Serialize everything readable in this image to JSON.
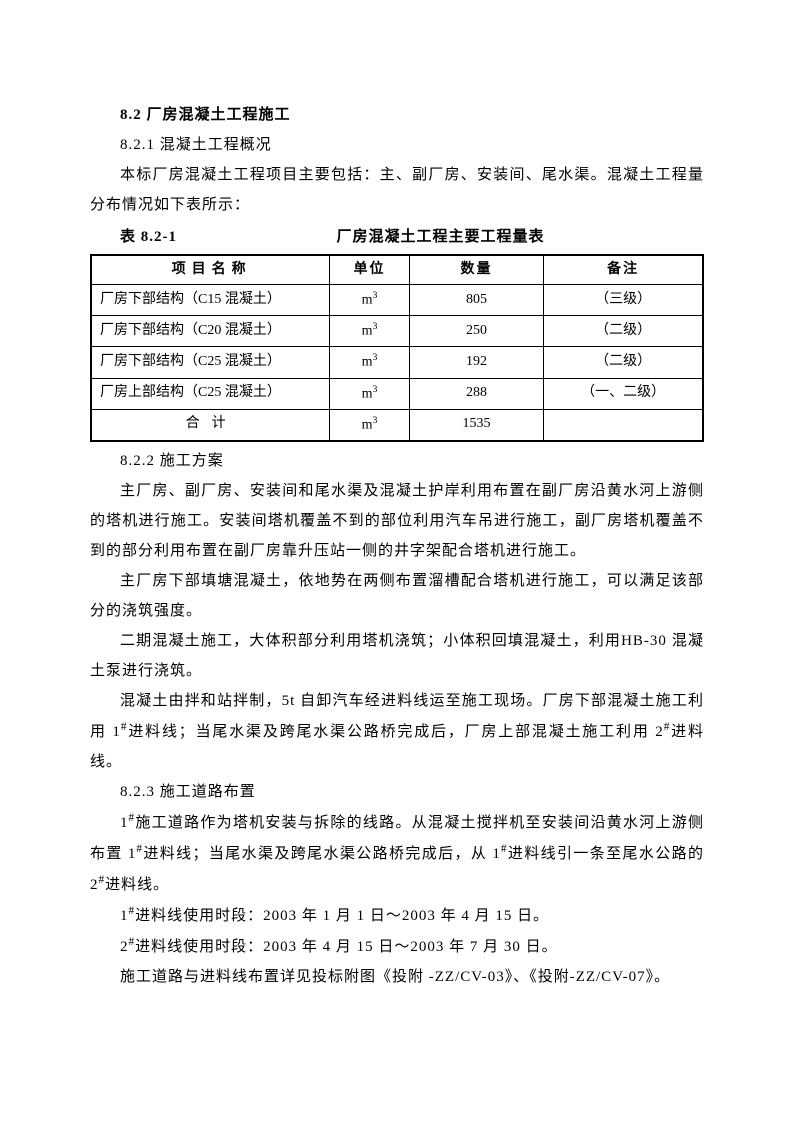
{
  "section": {
    "h1": "8.2 厂房混凝土工程施工",
    "h2_1": "8.2.1 混凝土工程概况",
    "p1": "本标厂房混凝土工程项目主要包括：主、副厂房、安装间、尾水渠。混凝土工程量分布情况如下表所示：",
    "table_caption_left": "表 8.2-1",
    "table_caption_center": "厂房混凝土工程主要工程量表",
    "h2_2": "8.2.2 施工方案",
    "p2": "主厂房、副厂房、安装间和尾水渠及混凝土护岸利用布置在副厂房沿黄水河上游侧的塔机进行施工。安装间塔机覆盖不到的部位利用汽车吊进行施工，副厂房塔机覆盖不到的部分利用布置在副厂房靠升压站一侧的井字架配合塔机进行施工。",
    "p3": "主厂房下部填塘混凝土，依地势在两侧布置溜槽配合塔机进行施工，可以满足该部分的浇筑强度。",
    "p4": "二期混凝土施工，大体积部分利用塔机浇筑；小体积回填混凝土，利用HB-30 混凝土泵进行浇筑。",
    "p5a": "混凝土由拌和站拌制，5t 自卸汽车经进料线运至施工现场。厂房下部混凝土施工利用 1",
    "p5b": "进料线；当尾水渠及跨尾水渠公路桥完成后，厂房上部混凝土施工利用 2",
    "p5c": "进料线。",
    "h2_3": "8.2.3 施工道路布置",
    "p6a": "1",
    "p6b": "施工道路作为塔机安装与拆除的线路。从混凝土搅拌机至安装间沿黄水河上游侧布置 1",
    "p6c": "进料线；当尾水渠及跨尾水渠公路桥完成后，从 1",
    "p6d": "进料线引一条至尾水公路的 2",
    "p6e": "进料线。",
    "p7a": "1",
    "p7b": "进料线使用时段：2003 年 1 月 1 日～2003 年 4 月 15 日。",
    "p8a": "2",
    "p8b": "进料线使用时段：2003 年 4 月 15 日～2003 年 7 月 30 日。",
    "p9": "施工道路与进料线布置详见投标附图《投附 -ZZ/CV-03》、《投附-ZZ/CV-07》。"
  },
  "table": {
    "columns": [
      "项目名称",
      "单位",
      "数量",
      "备注"
    ],
    "unit_base": "m",
    "unit_sup": "3",
    "rows": [
      {
        "name": "厂房下部结构（C15 混凝土）",
        "qty": "805",
        "note": "（三级）"
      },
      {
        "name": "厂房下部结构（C20 混凝土）",
        "qty": "250",
        "note": "（二级）"
      },
      {
        "name": "厂房下部结构（C25 混凝土）",
        "qty": "192",
        "note": "（二级）"
      },
      {
        "name": "厂房上部结构（C25 混凝土）",
        "qty": "288",
        "note": "（一、二级）"
      }
    ],
    "total": {
      "name": "合计",
      "qty": "1535",
      "note": ""
    }
  }
}
